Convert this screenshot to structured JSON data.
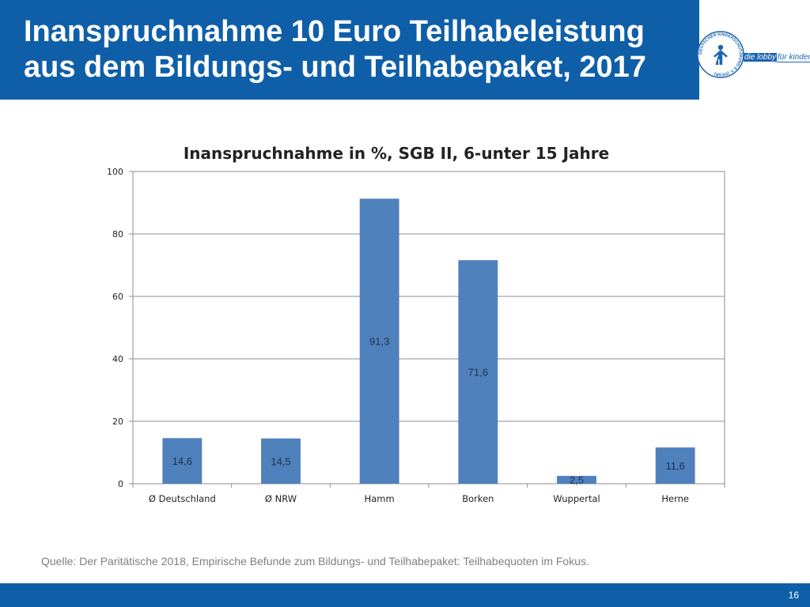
{
  "header": {
    "title_line1": "Inanspruchnahme 10 Euro Teilhabeleistung",
    "title_line2": "aus dem Bildungs- und Teilhabepaket, 2017"
  },
  "logo": {
    "seal_text": "DEUTSCHER KINDERSCHUTZBUND E.V. (DKSB)",
    "slogan_part1": "die lobby",
    "slogan_part2": "für kinder"
  },
  "chart_data": {
    "type": "bar",
    "title": "Inanspruchnahme in %, SGB II, 6-unter 15 Jahre",
    "categories": [
      "Ø Deutschland",
      "Ø NRW",
      "Hamm",
      "Borken",
      "Wuppertal",
      "Herne"
    ],
    "values": [
      14.6,
      14.5,
      91.3,
      71.6,
      2.5,
      11.6
    ],
    "value_labels": [
      "14,6",
      "14,5",
      "91,3",
      "71,6",
      "2,5",
      "11,6"
    ],
    "ylim": [
      0,
      100
    ],
    "yticks": [
      0,
      20,
      40,
      60,
      80,
      100
    ],
    "grid": true,
    "bar_color": "#4f81bd",
    "xlabel": "",
    "ylabel": ""
  },
  "source": "Quelle: Der Paritätische 2018, Empirische Befunde zum Bildungs- und Teilhabepaket: Teilhabequoten im Fokus.",
  "footer": {
    "page_number": "16"
  },
  "colors": {
    "header_bg": "#0f5fa8",
    "footer_bg": "#0f5fa8"
  }
}
